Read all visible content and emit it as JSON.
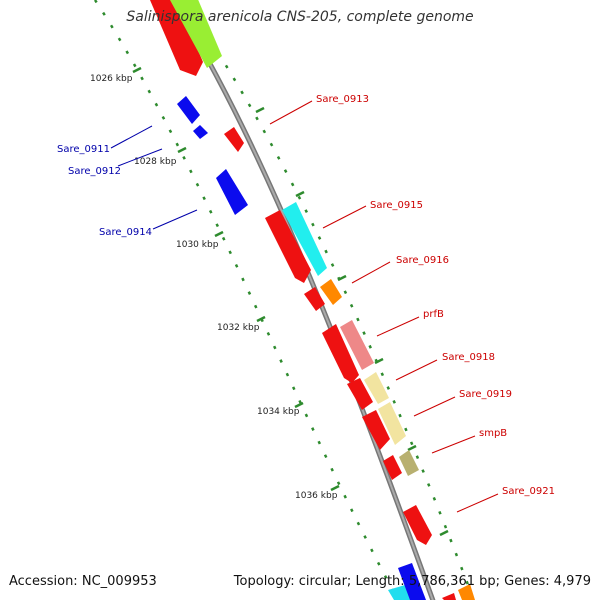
{
  "title": "Salinispora arenicola CNS-205, complete genome",
  "footer": {
    "accession_label": "Accession:",
    "accession": "NC_009953",
    "topology_label": "Topology:",
    "topology": "circular",
    "length_label": "Length:",
    "length": "5,786,361 bp",
    "genes_label": "Genes:",
    "genes": "4,979"
  },
  "colors": {
    "backbone": "#888888",
    "forward_label": "#cc0000",
    "reverse_label": "#0000aa",
    "tick": "#339933"
  },
  "scale_labels": [
    "1026 kbp",
    "1028 kbp",
    "1030 kbp",
    "1032 kbp",
    "1034 kbp",
    "1036 kbp"
  ],
  "gene_labels": {
    "reverse": [
      "Sare_0911",
      "Sare_0912",
      "Sare_0914"
    ],
    "forward": [
      "Sare_0913",
      "Sare_0915",
      "Sare_0916",
      "prfB",
      "Sare_0918",
      "Sare_0919",
      "smpB",
      "Sare_0921"
    ]
  }
}
